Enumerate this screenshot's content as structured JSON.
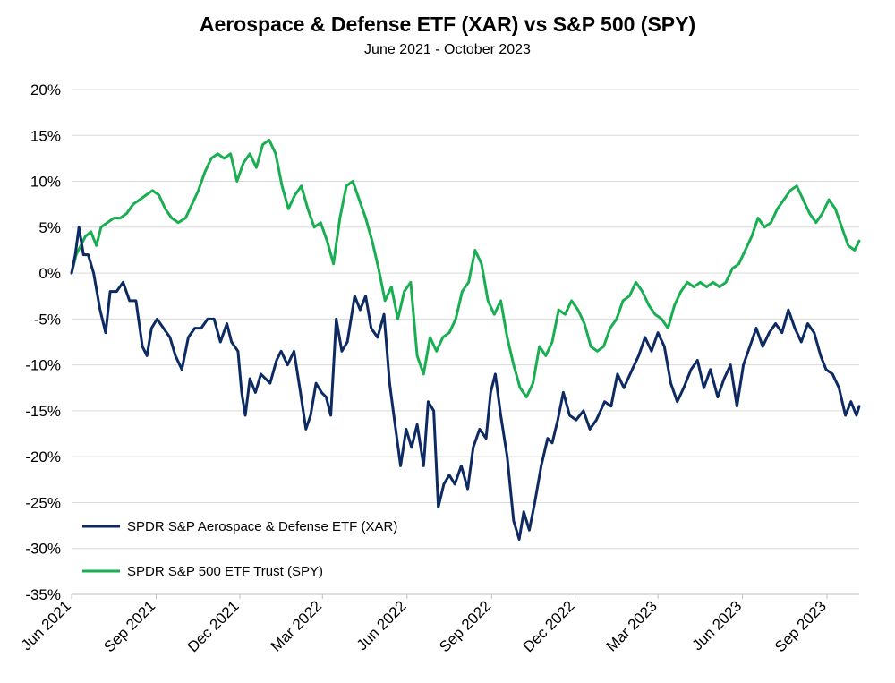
{
  "chart_data": {
    "type": "line",
    "title": "Aerospace & Defense ETF (XAR) vs S&P 500 (SPY)",
    "subtitle": "June 2021 - October 2023",
    "xlabel": "",
    "ylabel": "",
    "x_ticks": [
      "Jun 2021",
      "Sep 2021",
      "Dec 2021",
      "Mar 2022",
      "Jun 2022",
      "Sep 2022",
      "Dec 2022",
      "Mar 2023",
      "Jun 2023",
      "Sep 2023"
    ],
    "y_ticks": [
      "20%",
      "15%",
      "10%",
      "5%",
      "0%",
      "-5%",
      "-10%",
      "-15%",
      "-20%",
      "-25%",
      "-30%",
      "-35%"
    ],
    "ylim": [
      -35,
      20
    ],
    "xlim": [
      "2021-06-01",
      "2023-10-06"
    ],
    "grid": "horizontal",
    "legend_position": "bottom-left",
    "colors": {
      "xar": "#0d2a63",
      "spy": "#1aae52"
    },
    "series": [
      {
        "name": "SPDR S&P Aerospace & Defense ETF (XAR)",
        "color": "#0d2a63",
        "points": [
          [
            "2021-06-01",
            0
          ],
          [
            "2021-06-05",
            2
          ],
          [
            "2021-06-09",
            5
          ],
          [
            "2021-06-14",
            2
          ],
          [
            "2021-06-19",
            2
          ],
          [
            "2021-06-25",
            0
          ],
          [
            "2021-07-02",
            -4
          ],
          [
            "2021-07-08",
            -6.5
          ],
          [
            "2021-07-13",
            -2
          ],
          [
            "2021-07-20",
            -2
          ],
          [
            "2021-07-27",
            -1
          ],
          [
            "2021-08-03",
            -3
          ],
          [
            "2021-08-10",
            -3
          ],
          [
            "2021-08-17",
            -8
          ],
          [
            "2021-08-22",
            -9
          ],
          [
            "2021-08-27",
            -6
          ],
          [
            "2021-09-02",
            -5
          ],
          [
            "2021-09-09",
            -6
          ],
          [
            "2021-09-16",
            -7
          ],
          [
            "2021-09-22",
            -9
          ],
          [
            "2021-09-29",
            -10.5
          ],
          [
            "2021-10-06",
            -7
          ],
          [
            "2021-10-13",
            -6
          ],
          [
            "2021-10-20",
            -6
          ],
          [
            "2021-10-27",
            -5
          ],
          [
            "2021-11-03",
            -5
          ],
          [
            "2021-11-10",
            -7.5
          ],
          [
            "2021-11-17",
            -5.5
          ],
          [
            "2021-11-22",
            -7.5
          ],
          [
            "2021-11-29",
            -8.5
          ],
          [
            "2021-12-03",
            -13
          ],
          [
            "2021-12-07",
            -15.5
          ],
          [
            "2021-12-12",
            -11.5
          ],
          [
            "2021-12-18",
            -13
          ],
          [
            "2021-12-24",
            -11
          ],
          [
            "2022-01-03",
            -12
          ],
          [
            "2022-01-10",
            -9.5
          ],
          [
            "2022-01-15",
            -8.5
          ],
          [
            "2022-01-22",
            -10
          ],
          [
            "2022-01-29",
            -8.5
          ],
          [
            "2022-02-05",
            -13
          ],
          [
            "2022-02-11",
            -17
          ],
          [
            "2022-02-16",
            -15.5
          ],
          [
            "2022-02-22",
            -12
          ],
          [
            "2022-02-28",
            -13
          ],
          [
            "2022-03-05",
            -13.5
          ],
          [
            "2022-03-10",
            -15.5
          ],
          [
            "2022-03-16",
            -5
          ],
          [
            "2022-03-22",
            -8.5
          ],
          [
            "2022-03-28",
            -7.5
          ],
          [
            "2022-04-05",
            -2.5
          ],
          [
            "2022-04-11",
            -4
          ],
          [
            "2022-04-17",
            -2.5
          ],
          [
            "2022-04-23",
            -6
          ],
          [
            "2022-04-30",
            -7
          ],
          [
            "2022-05-07",
            -4.5
          ],
          [
            "2022-05-13",
            -12
          ],
          [
            "2022-05-19",
            -16.5
          ],
          [
            "2022-05-25",
            -21
          ],
          [
            "2022-05-31",
            -17
          ],
          [
            "2022-06-06",
            -19
          ],
          [
            "2022-06-12",
            -16.5
          ],
          [
            "2022-06-19",
            -21
          ],
          [
            "2022-06-24",
            -14
          ],
          [
            "2022-06-30",
            -15
          ],
          [
            "2022-07-05",
            -25.5
          ],
          [
            "2022-07-11",
            -23
          ],
          [
            "2022-07-17",
            -22
          ],
          [
            "2022-07-23",
            -23
          ],
          [
            "2022-07-30",
            -21
          ],
          [
            "2022-08-06",
            -23.5
          ],
          [
            "2022-08-12",
            -19
          ],
          [
            "2022-08-19",
            -17
          ],
          [
            "2022-08-26",
            -18
          ],
          [
            "2022-08-31",
            -13
          ],
          [
            "2022-09-05",
            -11
          ],
          [
            "2022-09-11",
            -15.5
          ],
          [
            "2022-09-18",
            -20
          ],
          [
            "2022-09-25",
            -27
          ],
          [
            "2022-10-01",
            -29
          ],
          [
            "2022-10-06",
            -26
          ],
          [
            "2022-10-12",
            -28
          ],
          [
            "2022-10-18",
            -25
          ],
          [
            "2022-10-25",
            -21
          ],
          [
            "2022-11-01",
            -18
          ],
          [
            "2022-11-06",
            -18.5
          ],
          [
            "2022-11-12",
            -16
          ],
          [
            "2022-11-18",
            -13
          ],
          [
            "2022-11-25",
            -15.5
          ],
          [
            "2022-12-02",
            -16
          ],
          [
            "2022-12-10",
            -15
          ],
          [
            "2022-12-17",
            -17
          ],
          [
            "2022-12-24",
            -16
          ],
          [
            "2023-01-02",
            -14
          ],
          [
            "2023-01-09",
            -14.5
          ],
          [
            "2023-01-16",
            -11
          ],
          [
            "2023-01-23",
            -12.5
          ],
          [
            "2023-02-01",
            -10.5
          ],
          [
            "2023-02-08",
            -9
          ],
          [
            "2023-02-15",
            -7
          ],
          [
            "2023-02-22",
            -8.5
          ],
          [
            "2023-03-01",
            -6.5
          ],
          [
            "2023-03-08",
            -8
          ],
          [
            "2023-03-15",
            -12
          ],
          [
            "2023-03-22",
            -14
          ],
          [
            "2023-03-29",
            -12.5
          ],
          [
            "2023-04-06",
            -10.5
          ],
          [
            "2023-04-13",
            -9.5
          ],
          [
            "2023-04-20",
            -12.5
          ],
          [
            "2023-04-27",
            -10.5
          ],
          [
            "2023-05-05",
            -13.5
          ],
          [
            "2023-05-12",
            -11.5
          ],
          [
            "2023-05-19",
            -10
          ],
          [
            "2023-05-26",
            -14.5
          ],
          [
            "2023-06-02",
            -10
          ],
          [
            "2023-06-09",
            -8
          ],
          [
            "2023-06-16",
            -6
          ],
          [
            "2023-06-23",
            -8
          ],
          [
            "2023-06-30",
            -6.5
          ],
          [
            "2023-07-07",
            -5.5
          ],
          [
            "2023-07-14",
            -6.5
          ],
          [
            "2023-07-21",
            -4
          ],
          [
            "2023-07-28",
            -6
          ],
          [
            "2023-08-04",
            -7.5
          ],
          [
            "2023-08-11",
            -5.5
          ],
          [
            "2023-08-18",
            -6.5
          ],
          [
            "2023-08-25",
            -9
          ],
          [
            "2023-08-31",
            -10.5
          ],
          [
            "2023-09-07",
            -11
          ],
          [
            "2023-09-14",
            -12.5
          ],
          [
            "2023-09-21",
            -15.5
          ],
          [
            "2023-09-27",
            -14
          ],
          [
            "2023-10-03",
            -15.5
          ],
          [
            "2023-10-06",
            -14.5
          ]
        ]
      },
      {
        "name": "SPDR S&P 500 ETF Trust (SPY)",
        "color": "#1aae52",
        "points": [
          [
            "2021-06-01",
            0
          ],
          [
            "2021-06-06",
            2
          ],
          [
            "2021-06-11",
            3
          ],
          [
            "2021-06-16",
            4
          ],
          [
            "2021-06-22",
            4.5
          ],
          [
            "2021-06-28",
            3
          ],
          [
            "2021-07-03",
            5
          ],
          [
            "2021-07-10",
            5.5
          ],
          [
            "2021-07-17",
            6
          ],
          [
            "2021-07-24",
            6
          ],
          [
            "2021-07-31",
            6.5
          ],
          [
            "2021-08-07",
            7.5
          ],
          [
            "2021-08-14",
            8
          ],
          [
            "2021-08-21",
            8.5
          ],
          [
            "2021-08-28",
            9
          ],
          [
            "2021-09-04",
            8.5
          ],
          [
            "2021-09-11",
            7
          ],
          [
            "2021-09-18",
            6
          ],
          [
            "2021-09-25",
            5.5
          ],
          [
            "2021-10-03",
            6
          ],
          [
            "2021-10-10",
            7.5
          ],
          [
            "2021-10-17",
            9
          ],
          [
            "2021-10-24",
            11
          ],
          [
            "2021-10-31",
            12.5
          ],
          [
            "2021-11-07",
            13
          ],
          [
            "2021-11-14",
            12.5
          ],
          [
            "2021-11-21",
            13
          ],
          [
            "2021-11-28",
            10
          ],
          [
            "2021-12-05",
            12
          ],
          [
            "2021-12-12",
            13
          ],
          [
            "2021-12-19",
            11.5
          ],
          [
            "2021-12-26",
            14
          ],
          [
            "2022-01-02",
            14.5
          ],
          [
            "2022-01-09",
            13
          ],
          [
            "2022-01-16",
            9.5
          ],
          [
            "2022-01-23",
            7
          ],
          [
            "2022-01-30",
            8.5
          ],
          [
            "2022-02-06",
            9.5
          ],
          [
            "2022-02-13",
            7
          ],
          [
            "2022-02-20",
            5
          ],
          [
            "2022-02-27",
            5.5
          ],
          [
            "2022-03-06",
            3.5
          ],
          [
            "2022-03-13",
            1
          ],
          [
            "2022-03-20",
            6
          ],
          [
            "2022-03-27",
            9.5
          ],
          [
            "2022-04-03",
            10
          ],
          [
            "2022-04-10",
            8
          ],
          [
            "2022-04-17",
            6
          ],
          [
            "2022-04-24",
            3.5
          ],
          [
            "2022-05-01",
            0.5
          ],
          [
            "2022-05-08",
            -3
          ],
          [
            "2022-05-15",
            -1.5
          ],
          [
            "2022-05-22",
            -5
          ],
          [
            "2022-05-29",
            -2
          ],
          [
            "2022-06-05",
            -1
          ],
          [
            "2022-06-12",
            -9
          ],
          [
            "2022-06-19",
            -11
          ],
          [
            "2022-06-26",
            -7
          ],
          [
            "2022-07-03",
            -8.5
          ],
          [
            "2022-07-10",
            -7
          ],
          [
            "2022-07-17",
            -6.5
          ],
          [
            "2022-07-24",
            -5
          ],
          [
            "2022-07-31",
            -2
          ],
          [
            "2022-08-07",
            -1
          ],
          [
            "2022-08-14",
            2.5
          ],
          [
            "2022-08-21",
            1
          ],
          [
            "2022-08-28",
            -3
          ],
          [
            "2022-09-04",
            -4.5
          ],
          [
            "2022-09-11",
            -3
          ],
          [
            "2022-09-18",
            -7
          ],
          [
            "2022-09-25",
            -10
          ],
          [
            "2022-10-02",
            -12.5
          ],
          [
            "2022-10-09",
            -13.5
          ],
          [
            "2022-10-16",
            -12
          ],
          [
            "2022-10-23",
            -8
          ],
          [
            "2022-10-30",
            -9
          ],
          [
            "2022-11-06",
            -7.5
          ],
          [
            "2022-11-13",
            -4
          ],
          [
            "2022-11-20",
            -4.5
          ],
          [
            "2022-11-27",
            -3
          ],
          [
            "2022-12-04",
            -4
          ],
          [
            "2022-12-11",
            -5.5
          ],
          [
            "2022-12-18",
            -8
          ],
          [
            "2022-12-25",
            -8.5
          ],
          [
            "2023-01-01",
            -8
          ],
          [
            "2023-01-08",
            -6
          ],
          [
            "2023-01-15",
            -5
          ],
          [
            "2023-01-22",
            -3
          ],
          [
            "2023-01-29",
            -2.5
          ],
          [
            "2023-02-05",
            -1
          ],
          [
            "2023-02-12",
            -2
          ],
          [
            "2023-02-19",
            -3.5
          ],
          [
            "2023-02-26",
            -4.5
          ],
          [
            "2023-03-05",
            -5
          ],
          [
            "2023-03-12",
            -6
          ],
          [
            "2023-03-19",
            -3.5
          ],
          [
            "2023-03-26",
            -2
          ],
          [
            "2023-04-02",
            -1
          ],
          [
            "2023-04-09",
            -1.5
          ],
          [
            "2023-04-16",
            -1
          ],
          [
            "2023-04-23",
            -1.5
          ],
          [
            "2023-04-30",
            -1
          ],
          [
            "2023-05-07",
            -1.5
          ],
          [
            "2023-05-14",
            -1
          ],
          [
            "2023-05-21",
            0.5
          ],
          [
            "2023-05-28",
            1
          ],
          [
            "2023-06-04",
            2.5
          ],
          [
            "2023-06-11",
            4
          ],
          [
            "2023-06-18",
            6
          ],
          [
            "2023-06-25",
            5
          ],
          [
            "2023-07-02",
            5.5
          ],
          [
            "2023-07-09",
            7
          ],
          [
            "2023-07-16",
            8
          ],
          [
            "2023-07-23",
            9
          ],
          [
            "2023-07-30",
            9.5
          ],
          [
            "2023-08-06",
            8
          ],
          [
            "2023-08-13",
            6.5
          ],
          [
            "2023-08-20",
            5.5
          ],
          [
            "2023-08-27",
            6.5
          ],
          [
            "2023-09-03",
            8
          ],
          [
            "2023-09-10",
            7
          ],
          [
            "2023-09-17",
            5
          ],
          [
            "2023-09-24",
            3
          ],
          [
            "2023-10-01",
            2.5
          ],
          [
            "2023-10-06",
            3.5
          ]
        ]
      }
    ]
  }
}
